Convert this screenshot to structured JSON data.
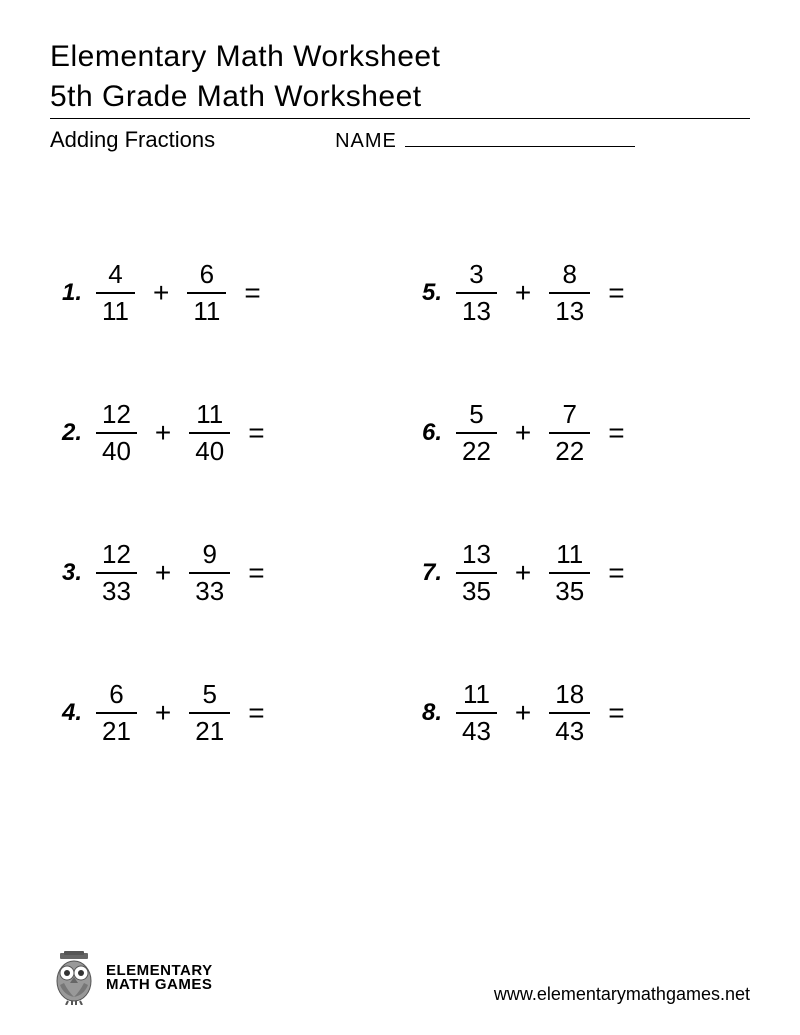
{
  "header": {
    "title": "Elementary Math Worksheet",
    "subtitle": "5th Grade Math Worksheet",
    "topic": "Adding Fractions",
    "name_label": "NAME"
  },
  "problems": [
    {
      "n": "1.",
      "a_num": "4",
      "a_den": "11",
      "op": "+",
      "b_num": "6",
      "b_den": "11"
    },
    {
      "n": "2.",
      "a_num": "12",
      "a_den": "40",
      "op": "+",
      "b_num": "11",
      "b_den": "40"
    },
    {
      "n": "3.",
      "a_num": "12",
      "a_den": "33",
      "op": "+",
      "b_num": "9",
      "b_den": "33"
    },
    {
      "n": "4.",
      "a_num": "6",
      "a_den": "21",
      "op": "+",
      "b_num": "5",
      "b_den": "21"
    },
    {
      "n": "5.",
      "a_num": "3",
      "a_den": "13",
      "op": "+",
      "b_num": "8",
      "b_den": "13"
    },
    {
      "n": "6.",
      "a_num": "5",
      "a_den": "22",
      "op": "+",
      "b_num": "7",
      "b_den": "22"
    },
    {
      "n": "7.",
      "a_num": "13",
      "a_den": "35",
      "op": "+",
      "b_num": "11",
      "b_den": "35"
    },
    {
      "n": "8.",
      "a_num": "11",
      "a_den": "43",
      "op": "+",
      "b_num": "18",
      "b_den": "43"
    }
  ],
  "equals": "=",
  "footer": {
    "logo_line1": "ELEMENTARY",
    "logo_line2": "MATH GAMES",
    "url": "www.elementarymathgames.net"
  },
  "style": {
    "page_bg": "#ffffff",
    "text_color": "#000000",
    "title_fontsize": 30,
    "topic_fontsize": 22,
    "problem_fontsize": 26,
    "owl_fill": "#888888",
    "owl_stroke": "#444444"
  }
}
